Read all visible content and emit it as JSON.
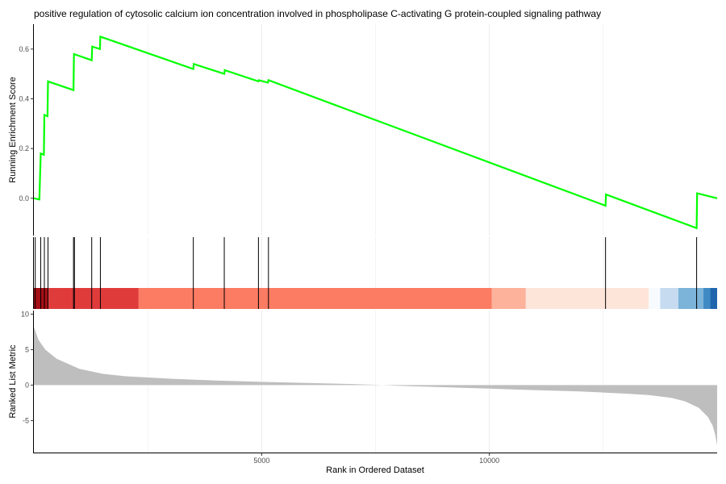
{
  "chart_data": {
    "type": "line",
    "title": "positive regulation of cytosolic calcium ion concentration involved in phospholipase C-activating G protein-coupled signaling pathway",
    "xlabel": "Rank in Ordered Dataset",
    "xlim": [
      0,
      15000
    ],
    "xticks": [
      5000,
      10000
    ],
    "grid": true,
    "panels": {
      "running_score": {
        "ylabel": "Running Enrichment Score",
        "ylim": [
          -0.15,
          0.7
        ],
        "yticks": [
          "0.0",
          "0.2",
          "0.4",
          "0.6"
        ],
        "ytick_values": [
          0.0,
          0.2,
          0.4,
          0.6
        ],
        "color": "#00ff00",
        "points": [
          [
            0,
            0.0
          ],
          [
            120,
            -0.005
          ],
          [
            150,
            0.18
          ],
          [
            220,
            0.175
          ],
          [
            230,
            0.335
          ],
          [
            300,
            0.33
          ],
          [
            310,
            0.47
          ],
          [
            870,
            0.435
          ],
          [
            880,
            0.58
          ],
          [
            1270,
            0.555
          ],
          [
            1280,
            0.61
          ],
          [
            1450,
            0.6
          ],
          [
            1460,
            0.65
          ],
          [
            3500,
            0.52
          ],
          [
            3510,
            0.54
          ],
          [
            4180,
            0.5
          ],
          [
            4190,
            0.515
          ],
          [
            4930,
            0.47
          ],
          [
            4940,
            0.475
          ],
          [
            5140,
            0.465
          ],
          [
            5150,
            0.475
          ],
          [
            12550,
            -0.03
          ],
          [
            12560,
            0.015
          ],
          [
            14550,
            -0.12
          ],
          [
            14560,
            0.02
          ],
          [
            15000,
            0.0
          ]
        ]
      },
      "hits": {
        "positions": [
          30,
          150,
          230,
          310,
          870,
          890,
          1270,
          1460,
          3500,
          4180,
          4930,
          5150,
          12550,
          14550
        ]
      },
      "color_band": {
        "segments": [
          {
            "x0": 0,
            "x1": 320,
            "color": "#a50f15"
          },
          {
            "x0": 320,
            "x1": 2300,
            "color": "#e03b3b"
          },
          {
            "x0": 2300,
            "x1": 10050,
            "color": "#fb7b63"
          },
          {
            "x0": 10050,
            "x1": 10800,
            "color": "#fcb29b"
          },
          {
            "x0": 10800,
            "x1": 13500,
            "color": "#fee5da"
          },
          {
            "x0": 13500,
            "x1": 13750,
            "color": "#f7fbff"
          },
          {
            "x0": 13750,
            "x1": 14150,
            "color": "#c6dbef"
          },
          {
            "x0": 14150,
            "x1": 14700,
            "color": "#7bb3d9"
          },
          {
            "x0": 14700,
            "x1": 14850,
            "color": "#3f8ac4"
          },
          {
            "x0": 14850,
            "x1": 15000,
            "color": "#1f65ae"
          }
        ]
      },
      "ranked_metric": {
        "ylabel": "Ranked List Metric",
        "ylim": [
          -9.5,
          10.5
        ],
        "yticks": [
          "10",
          "5",
          "0",
          "-5"
        ],
        "ytick_values": [
          10,
          5,
          0,
          -5
        ],
        "color": "#bebebe",
        "points": [
          [
            0,
            8.2
          ],
          [
            100,
            6.4
          ],
          [
            250,
            5.0
          ],
          [
            500,
            3.7
          ],
          [
            1000,
            2.3
          ],
          [
            1500,
            1.6
          ],
          [
            2000,
            1.25
          ],
          [
            3000,
            0.9
          ],
          [
            4000,
            0.65
          ],
          [
            5000,
            0.45
          ],
          [
            6000,
            0.3
          ],
          [
            7000,
            0.15
          ],
          [
            7500,
            0.05
          ],
          [
            8000,
            -0.1
          ],
          [
            9000,
            -0.3
          ],
          [
            10000,
            -0.5
          ],
          [
            11000,
            -0.7
          ],
          [
            12000,
            -0.9
          ],
          [
            13000,
            -1.2
          ],
          [
            13500,
            -1.4
          ],
          [
            14000,
            -1.8
          ],
          [
            14300,
            -2.3
          ],
          [
            14600,
            -3.2
          ],
          [
            14800,
            -4.5
          ],
          [
            14900,
            -5.7
          ],
          [
            14960,
            -7.0
          ],
          [
            15000,
            -8.5
          ]
        ]
      }
    }
  }
}
